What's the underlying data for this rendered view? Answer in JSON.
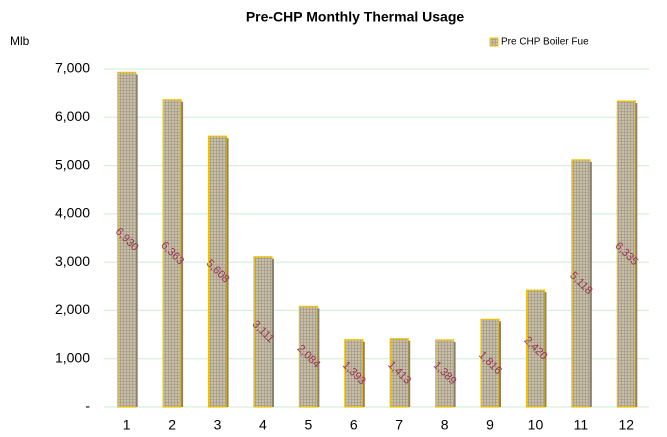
{
  "chart_data": {
    "type": "bar",
    "title": "Pre-CHP Monthly Thermal Usage",
    "y_label": "Mlb",
    "categories": [
      "1",
      "2",
      "3",
      "4",
      "5",
      "6",
      "7",
      "8",
      "9",
      "10",
      "11",
      "12"
    ],
    "series": [
      {
        "name": "Pre CHP  Boiler Fue",
        "color": "#c9bfa6",
        "edge_color": "#f2c200",
        "values": [
          6930,
          6363,
          5608,
          3111,
          2084,
          1393,
          1413,
          1389,
          1816,
          2420,
          5118,
          6335
        ],
        "value_labels": [
          "6,930",
          "6,363",
          "5,608",
          "3,111",
          "2,084",
          "1,393",
          "1,413",
          "1,389",
          "1,816",
          "2,420",
          "5,118",
          "6,335"
        ]
      }
    ],
    "ylim": [
      0,
      7000
    ],
    "yticks": [
      {
        "value": 0,
        "label": "-"
      },
      {
        "value": 1000,
        "label": "1,000"
      },
      {
        "value": 2000,
        "label": "2,000"
      },
      {
        "value": 3000,
        "label": "3,000"
      },
      {
        "value": 4000,
        "label": "4,000"
      },
      {
        "value": 5000,
        "label": "5,000"
      },
      {
        "value": 6000,
        "label": "6,000"
      },
      {
        "value": 7000,
        "label": "7,000"
      }
    ],
    "grid": true,
    "grid_color": "#cfeecf",
    "value_label_color": "#993355",
    "legend": "top-right"
  }
}
